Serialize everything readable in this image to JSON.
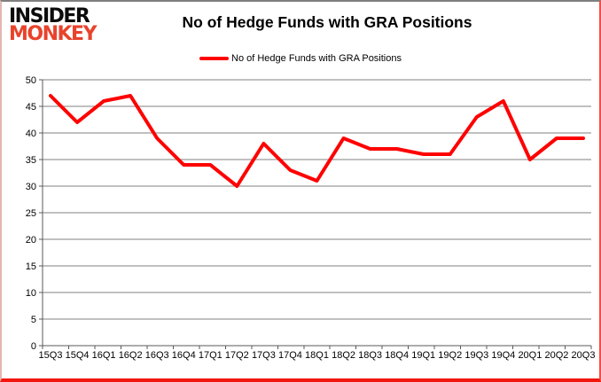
{
  "logo": {
    "line1": "INSIDER",
    "line2": "MONKEY",
    "color_primary": "#0c0c0c",
    "color_accent": "#e8432c"
  },
  "header": {
    "title": "No of Hedge Funds with GRA Positions"
  },
  "legend": {
    "label": "No of Hedge Funds with GRA Positions",
    "marker_color": "#ff0000"
  },
  "chart_data": {
    "type": "line",
    "title": "No of Hedge Funds with GRA Positions",
    "categories": [
      "15Q3",
      "15Q4",
      "16Q1",
      "16Q2",
      "16Q3",
      "16Q4",
      "17Q1",
      "17Q2",
      "17Q3",
      "17Q4",
      "18Q1",
      "18Q2",
      "18Q3",
      "18Q4",
      "19Q1",
      "19Q2",
      "19Q3",
      "19Q4",
      "20Q1",
      "20Q2",
      "20Q3"
    ],
    "series": [
      {
        "name": "No of Hedge Funds with GRA Positions",
        "color": "#ff0000",
        "values": [
          47,
          42,
          46,
          47,
          39,
          34,
          34,
          30,
          38,
          33,
          31,
          39,
          37,
          37,
          36,
          36,
          43,
          46,
          35,
          39,
          39
        ]
      }
    ],
    "xlabel": "",
    "ylabel": "",
    "ylim": [
      0,
      50
    ],
    "yticks": [
      0,
      5,
      10,
      15,
      20,
      25,
      30,
      35,
      40,
      45,
      50
    ],
    "grid": true,
    "grid_color": "#808080",
    "axis_color": "#595959",
    "legend_position": "top-center"
  }
}
